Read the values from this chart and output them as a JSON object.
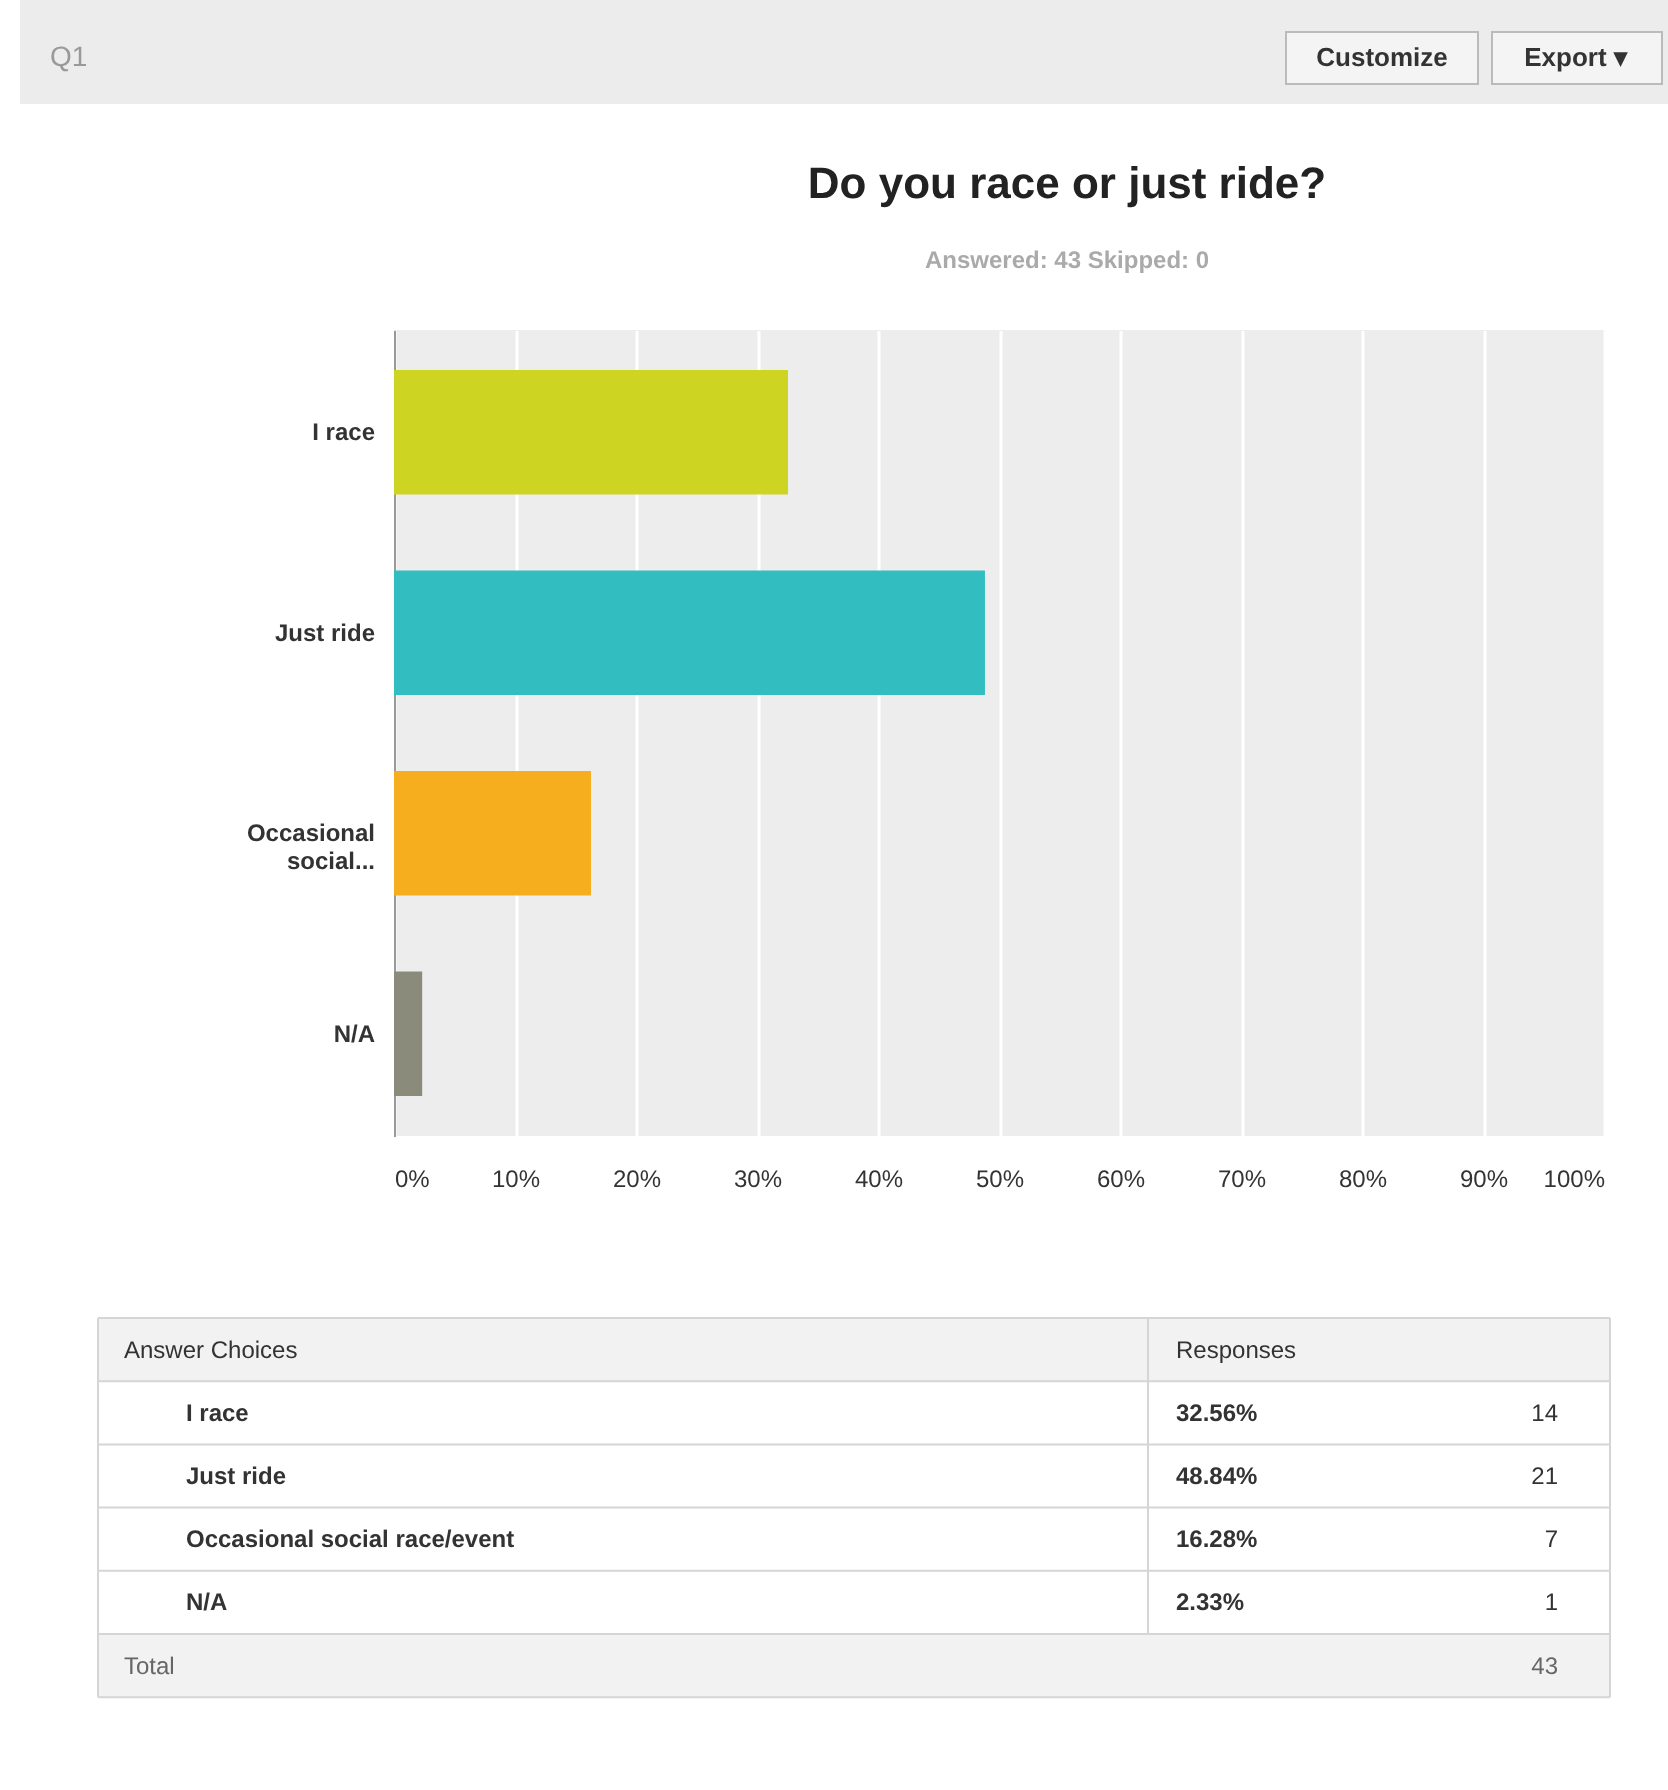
{
  "chart_data": {
    "type": "bar",
    "orientation": "horizontal",
    "title": "Do you race or just ride?",
    "subtitle": "Answered: 43    Skipped: 0",
    "categories": [
      "I race",
      "Just ride",
      "Occasional social...",
      "N/A"
    ],
    "values": [
      32.56,
      48.84,
      16.28,
      2.33
    ],
    "colors": [
      "#cdd422",
      "#32bdc0",
      "#f6ae1e",
      "#8b8b7b"
    ],
    "xlim": [
      0,
      100
    ],
    "xticks": [
      {
        "value": 0,
        "label": "0%"
      },
      {
        "value": 10,
        "label": "10%"
      },
      {
        "value": 20,
        "label": "20%"
      },
      {
        "value": 30,
        "label": "30%"
      },
      {
        "value": 40,
        "label": "40%"
      },
      {
        "value": 50,
        "label": "50%"
      },
      {
        "value": 60,
        "label": "60%"
      },
      {
        "value": 70,
        "label": "70%"
      },
      {
        "value": 80,
        "label": "80%"
      },
      {
        "value": 90,
        "label": "90%"
      },
      {
        "value": 100,
        "label": "100%"
      }
    ],
    "grid": "x",
    "legend": false,
    "annotations": [
      "Q1",
      "Customize",
      "Export ▾",
      "Answer Choices",
      "Responses",
      "I race",
      "Just ride",
      "Occasional social race/event",
      "N/A",
      "32.56%",
      "48.84%",
      "16.28%",
      "2.33%",
      "14",
      "21",
      "7",
      "1",
      "Total",
      "43"
    ]
  }
}
